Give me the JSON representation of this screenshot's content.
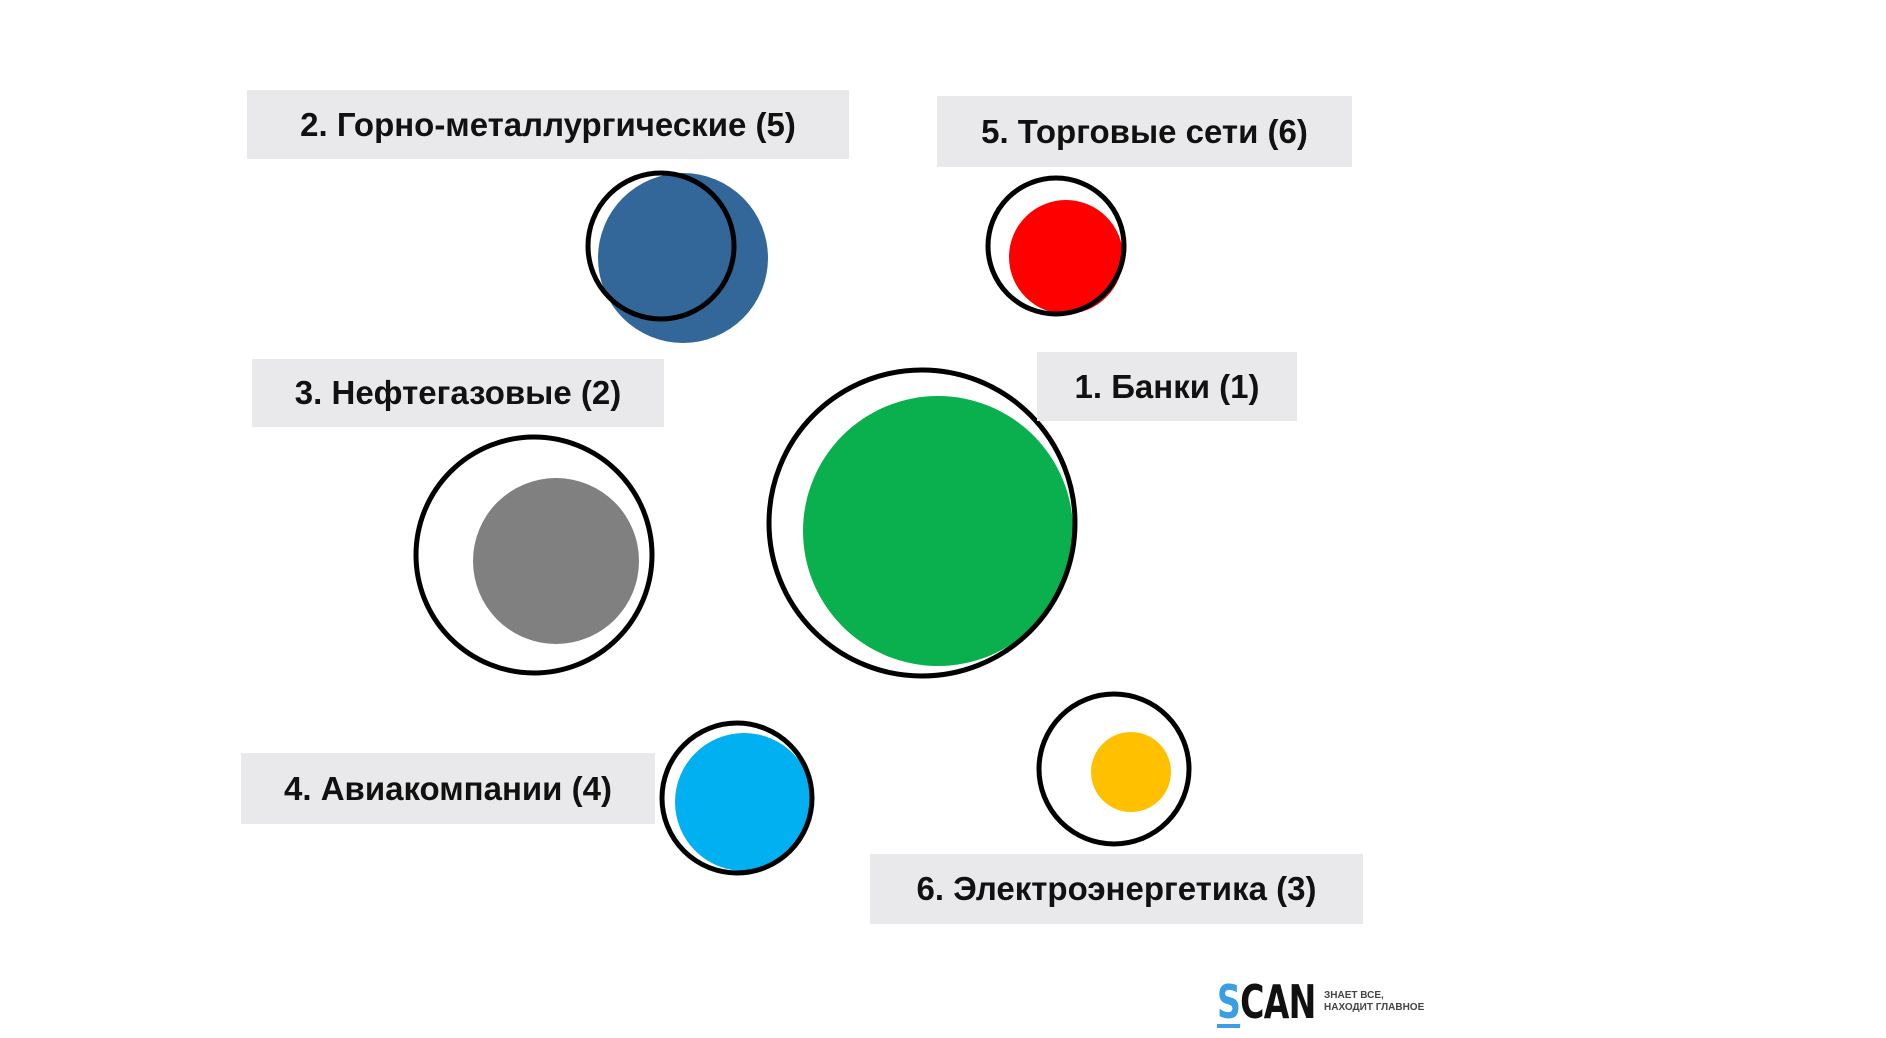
{
  "labels": {
    "mining": "2. Горно-металлургические (5)",
    "retail": "5. Торговые сети (6)",
    "oilgas": "3. Нефтегазовые (2)",
    "banks": "1. Банки (1)",
    "airlines": "4. Авиакомпании (4)",
    "power": "6. Электроэнергетика (3)"
  },
  "colors": {
    "mining": "#336699",
    "retail": "#ff0000",
    "oilgas": "#808080",
    "banks": "#0aaf4e",
    "airlines": "#00b0f0",
    "power": "#ffc000"
  },
  "logo": {
    "s": "S",
    "rest": "CAN",
    "tagline1": "Знает все,",
    "tagline2": "находит главное"
  }
}
